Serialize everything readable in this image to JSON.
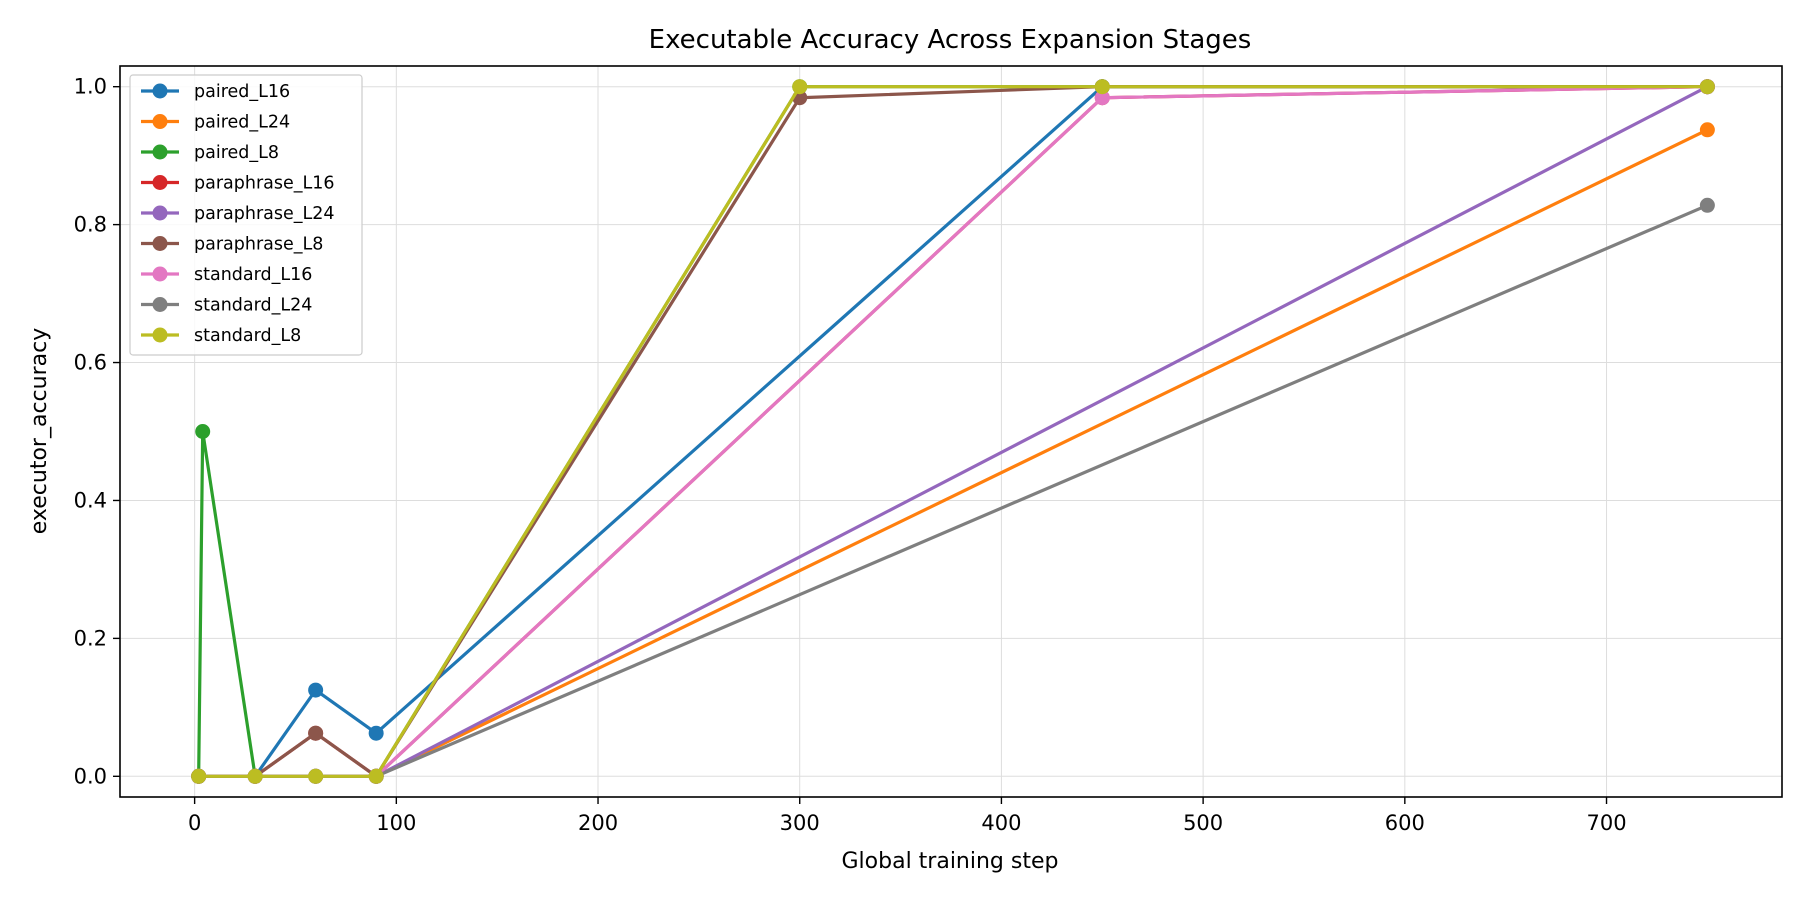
{
  "chart_data": {
    "type": "line",
    "title": "Executable Accuracy Across Expansion Stages",
    "xlabel": "Global training step",
    "ylabel": "executor_accuracy",
    "xlim": [
      -37,
      787
    ],
    "ylim": [
      -0.03,
      1.03
    ],
    "xticks": [
      0,
      100,
      200,
      300,
      400,
      500,
      600,
      700
    ],
    "yticks": [
      0.0,
      0.2,
      0.4,
      0.6,
      0.8,
      1.0
    ],
    "ytick_labels": [
      "0.0",
      "0.2",
      "0.4",
      "0.6",
      "0.8",
      "1.0"
    ],
    "grid": true,
    "legend_position": "top-left",
    "series": [
      {
        "name": "paired_L16",
        "color": "#1f77b4",
        "x": [
          2,
          30,
          60,
          90,
          450,
          750
        ],
        "y": [
          0.0,
          0.0,
          0.125,
          0.0625,
          1.0,
          1.0
        ]
      },
      {
        "name": "paired_L24",
        "color": "#ff7f0e",
        "x": [
          2,
          30,
          60,
          90,
          750
        ],
        "y": [
          0.0,
          0.0,
          0.0,
          0.0,
          0.9375
        ]
      },
      {
        "name": "paired_L8",
        "color": "#2ca02c",
        "x": [
          2,
          4,
          30,
          60,
          90,
          300,
          450,
          750
        ],
        "y": [
          0.0,
          0.5,
          0.0,
          0.0,
          0.0,
          1.0,
          1.0,
          1.0
        ]
      },
      {
        "name": "paraphrase_L16",
        "color": "#d62728",
        "x": [
          2,
          30,
          60,
          90,
          450,
          750
        ],
        "y": [
          0.0,
          0.0,
          0.0625,
          0.0,
          0.984,
          1.0
        ]
      },
      {
        "name": "paraphrase_L24",
        "color": "#9467bd",
        "x": [
          2,
          30,
          60,
          90,
          750
        ],
        "y": [
          0.0,
          0.0,
          0.0,
          0.0,
          1.0
        ]
      },
      {
        "name": "paraphrase_L8",
        "color": "#8c564b",
        "x": [
          2,
          30,
          60,
          90,
          300,
          450,
          750
        ],
        "y": [
          0.0,
          0.0,
          0.0625,
          0.0,
          0.984,
          1.0,
          1.0
        ]
      },
      {
        "name": "standard_L16",
        "color": "#e377c2",
        "x": [
          2,
          30,
          60,
          90,
          450,
          750
        ],
        "y": [
          0.0,
          0.0,
          0.0,
          0.0,
          0.984,
          1.0
        ]
      },
      {
        "name": "standard_L24",
        "color": "#7f7f7f",
        "x": [
          2,
          30,
          60,
          90,
          750
        ],
        "y": [
          0.0,
          0.0,
          0.0,
          0.0,
          0.828
        ]
      },
      {
        "name": "standard_L8",
        "color": "#bcbd22",
        "x": [
          2,
          30,
          60,
          90,
          300,
          450,
          750
        ],
        "y": [
          0.0,
          0.0,
          0.0,
          0.0,
          1.0,
          1.0,
          1.0
        ]
      }
    ]
  }
}
